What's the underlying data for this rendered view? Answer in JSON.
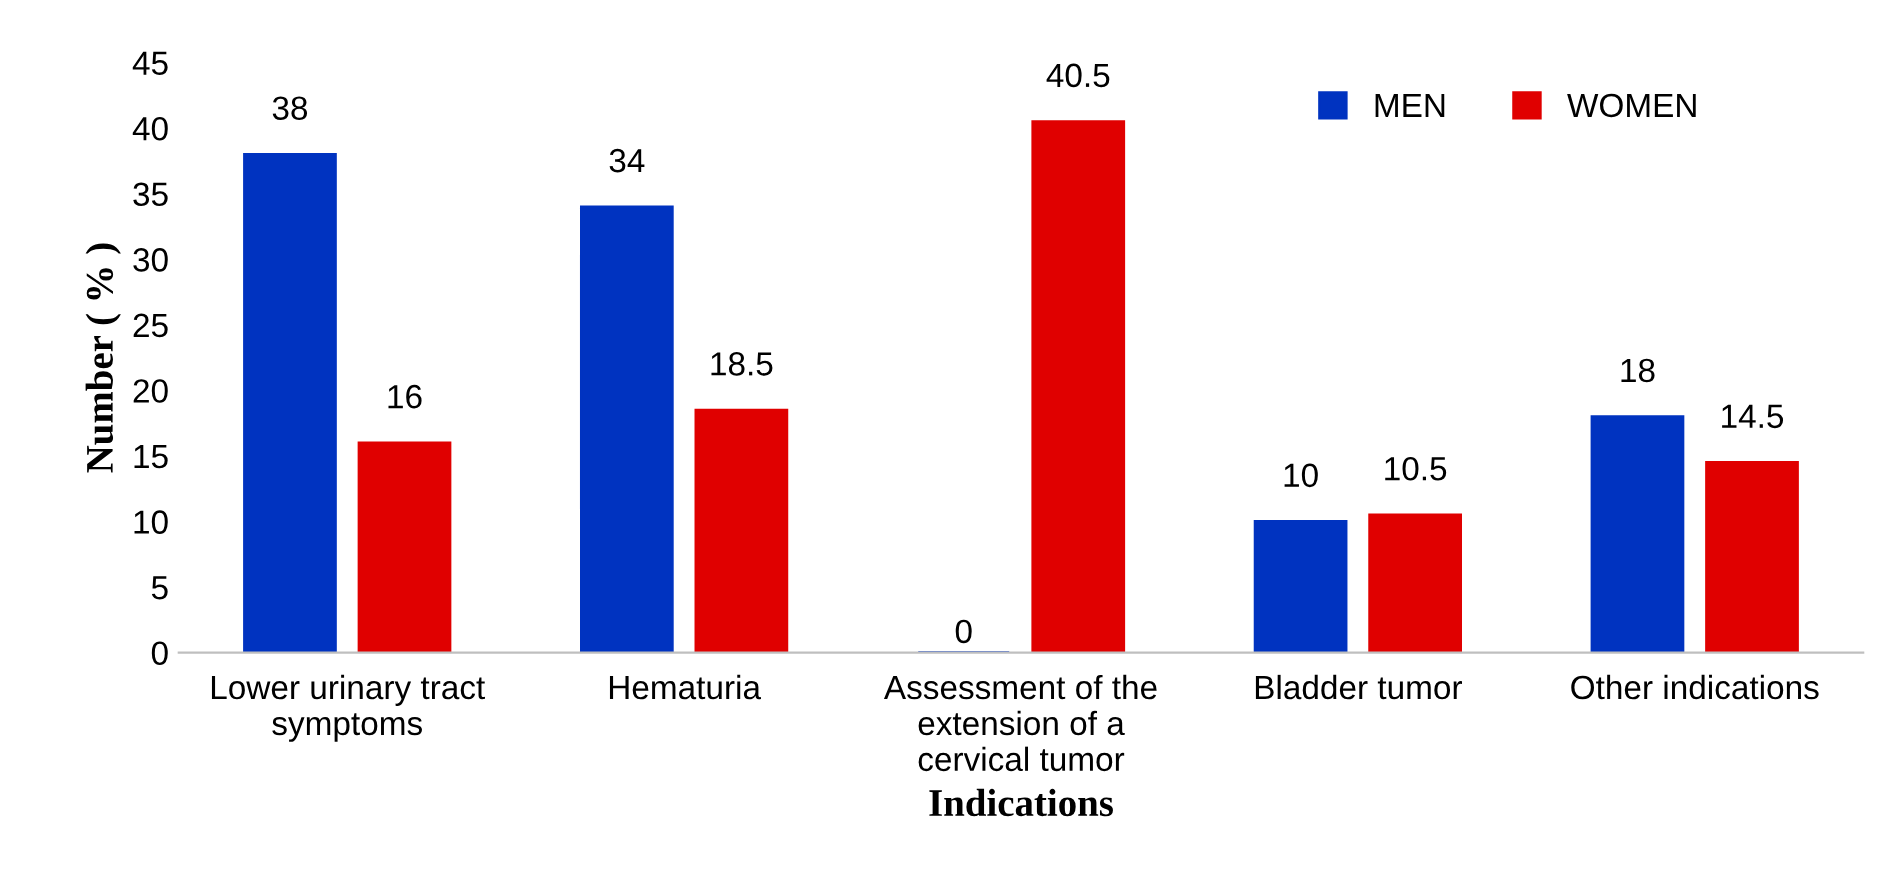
{
  "chart_data": {
    "type": "bar",
    "xlabel": "Indications",
    "ylabel": "Number ( % )",
    "categories": [
      "Lower urinary tract\nsymptoms",
      "Hematuria",
      "Assessment of the\nextension of a\ncervical tumor",
      "Bladder tumor",
      "Other indications"
    ],
    "series": [
      {
        "name": "MEN",
        "color": "#0033c0",
        "values": [
          38,
          34,
          0,
          10,
          18
        ]
      },
      {
        "name": "WOMEN",
        "color": "#e00000",
        "values": [
          16,
          18.5,
          40.5,
          10.5,
          14.5
        ]
      }
    ],
    "ylim": [
      0,
      45
    ],
    "yticks": [
      0,
      5,
      10,
      15,
      20,
      25,
      30,
      35,
      40,
      45
    ],
    "data_labels": true,
    "legend": "top right",
    "grid": false
  }
}
